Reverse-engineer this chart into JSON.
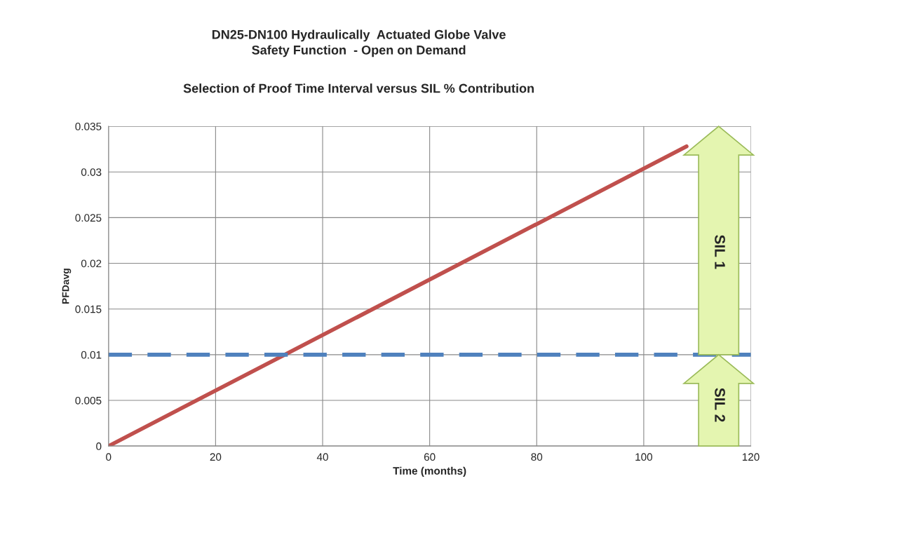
{
  "chart_data": {
    "type": "line",
    "title": "DN25-DN100 Hydraulically  Actuated Globe Valve\nSafety Function  - Open on Demand",
    "subtitle": "Selection of Proof Time Interval versus SIL % Contribution",
    "xlabel": "Time (months)",
    "ylabel": "PFDavg",
    "series": [
      {
        "color": "#c0504d",
        "x": [
          0,
          108
        ],
        "values": [
          0,
          0.0328
        ]
      }
    ],
    "xlim": [
      0,
      120
    ],
    "xticks": [
      0,
      20,
      40,
      60,
      80,
      100,
      120
    ],
    "ylim": [
      0,
      0.035
    ],
    "yticks": [
      0,
      0.005,
      0.01,
      0.015,
      0.02,
      0.025,
      0.03,
      0.035
    ],
    "ref_lines": [
      {
        "axis": "y",
        "value": 0.01,
        "color": "#4f81bd",
        "line_style": "dashed"
      }
    ],
    "annotations": [
      "SIL 1",
      "SIL 2"
    ],
    "grid": true,
    "legend": false,
    "marker": "none",
    "line_style": "solid"
  }
}
